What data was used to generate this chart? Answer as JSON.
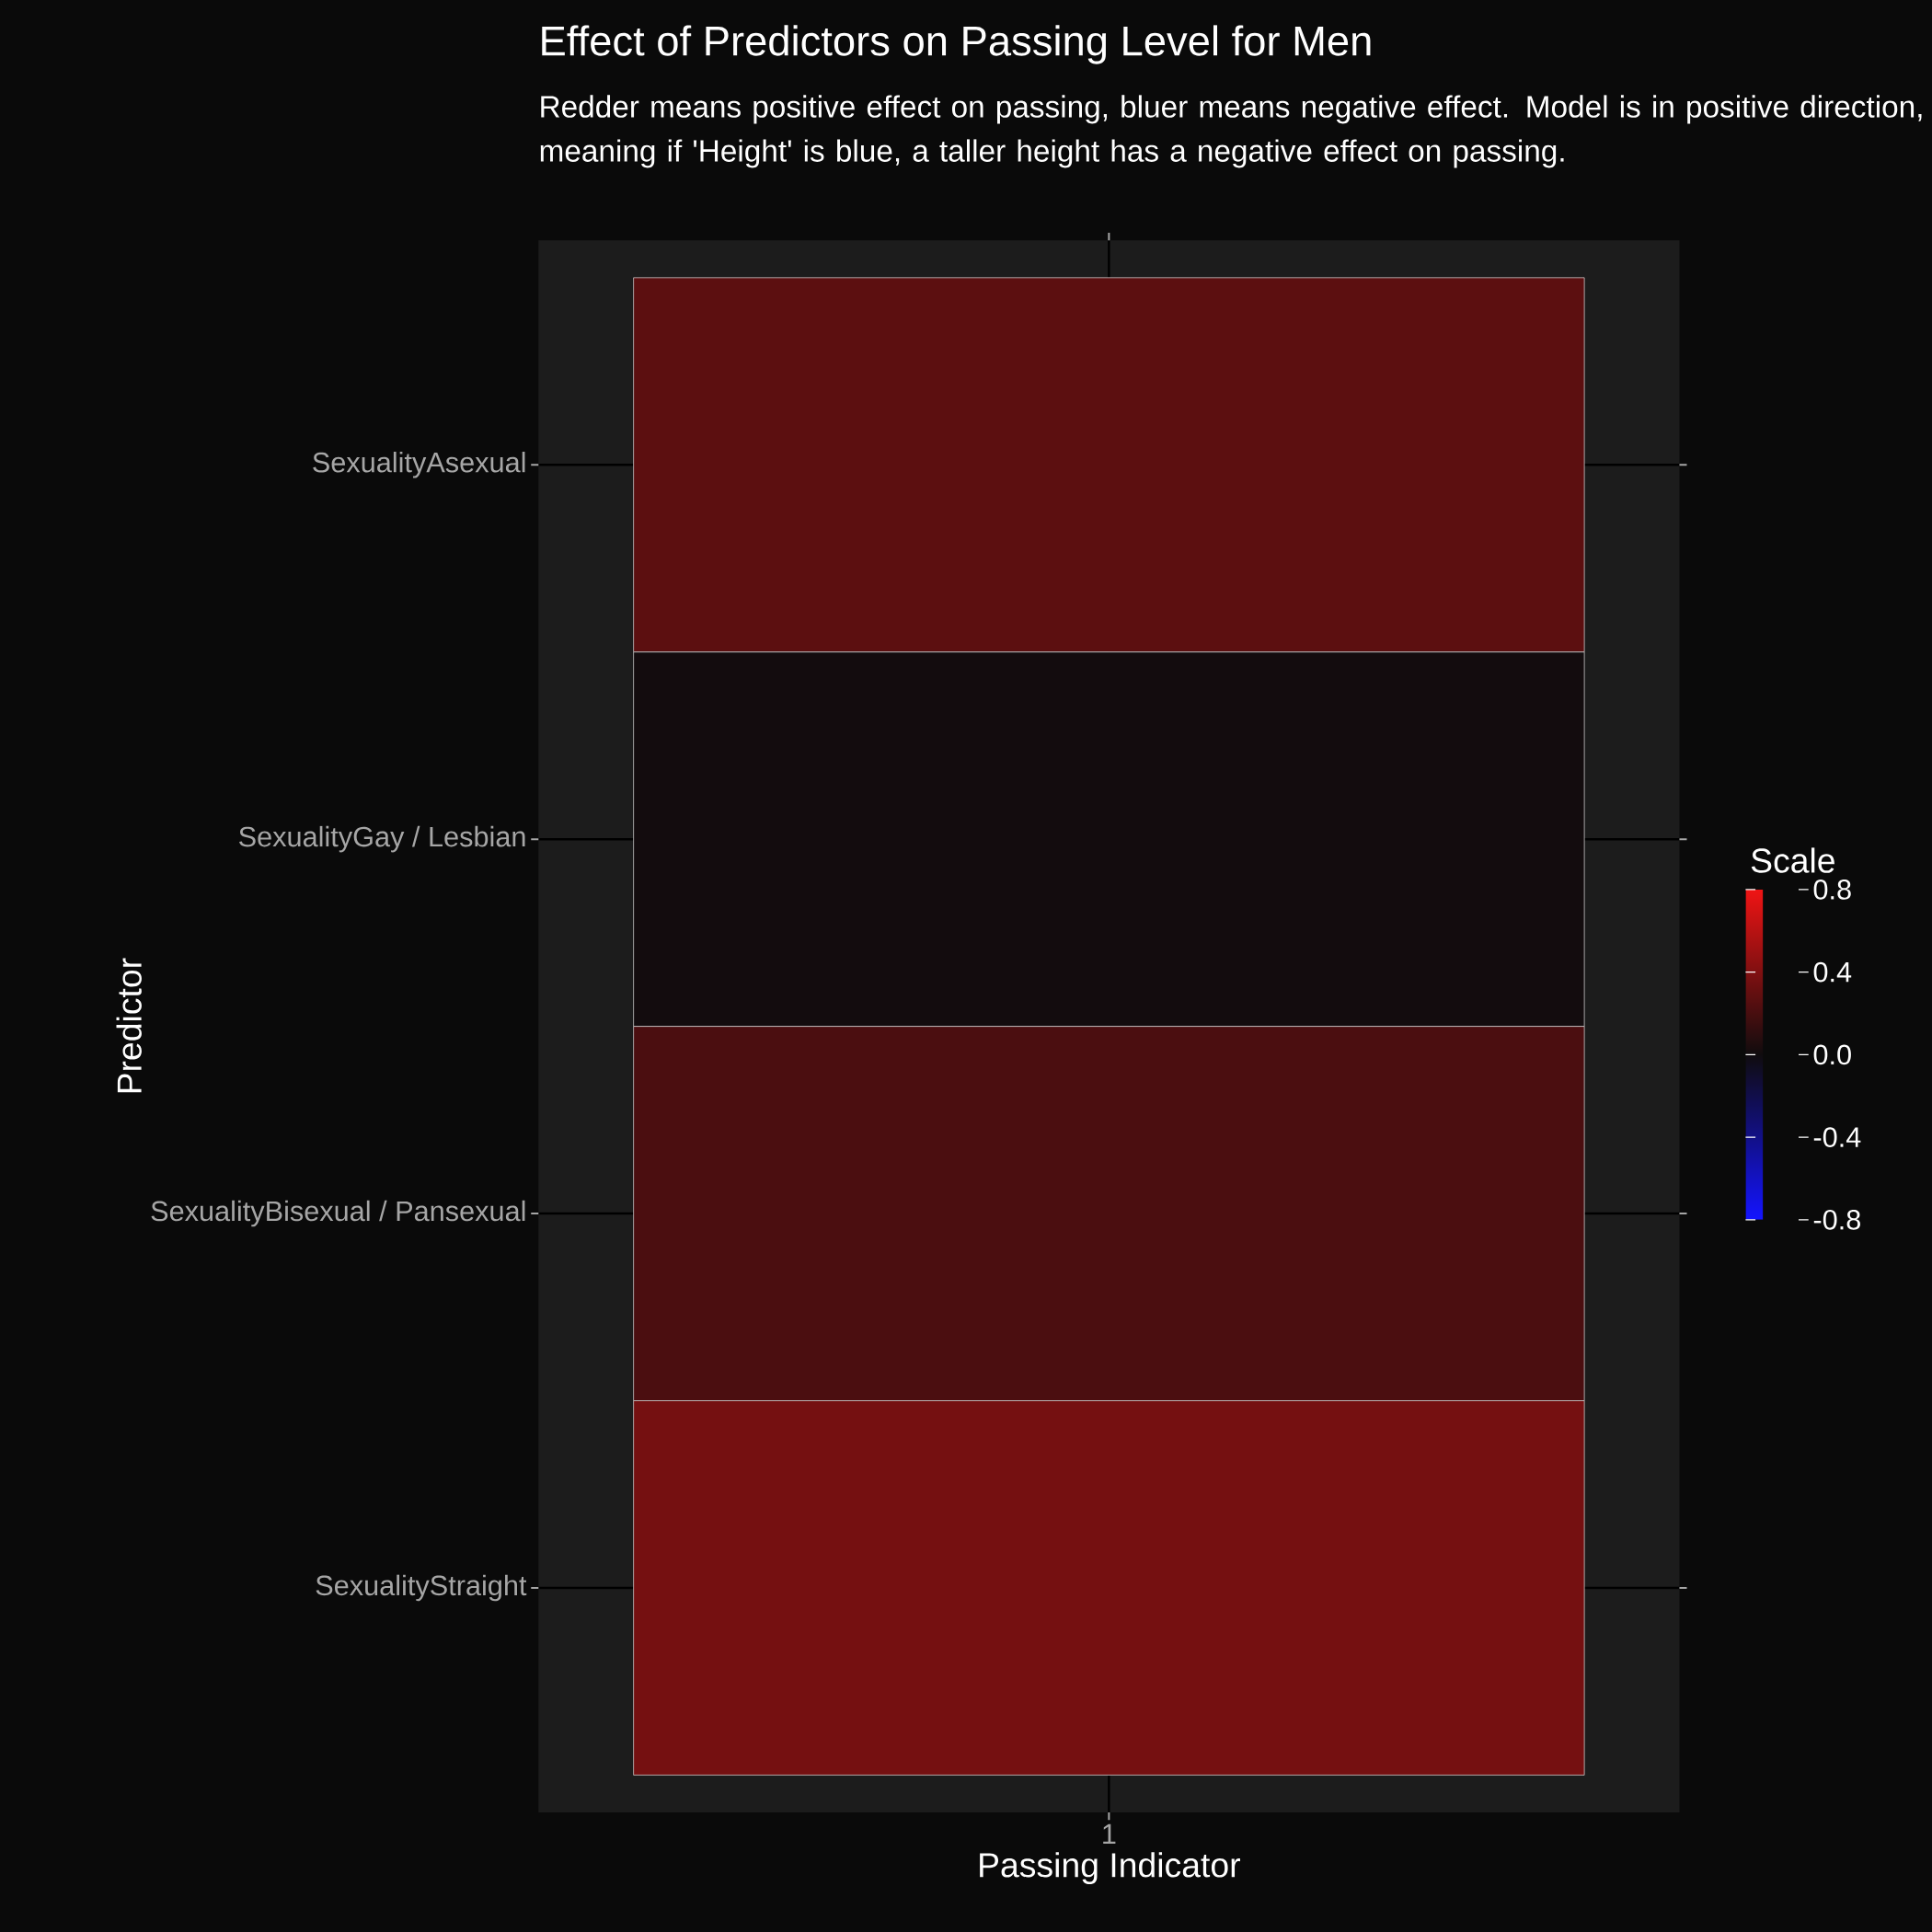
{
  "chart_data": {
    "type": "heatmap",
    "title": "Effect of Predictors on Passing Level for Men",
    "subtitle": "Redder means positive effect on passing, bluer means negative effect. Model is in positive direction, meaning if 'Height' is blue, a taller height has a negative effect on passing.",
    "xlabel": "Passing Indicator",
    "ylabel": "Predictor",
    "clabel": "Scale",
    "categories": [
      "1"
    ],
    "y_categories": [
      "SexualityAsexual",
      "SexualityGay / Lesbian",
      "SexualityBisexual / Pansexual",
      "SexualityStraight"
    ],
    "cells": [
      [
        0.27
      ],
      [
        0.01
      ],
      [
        0.21
      ],
      [
        0.36
      ]
    ],
    "clim": [
      -0.8,
      0.8
    ],
    "cticks": [
      -0.8,
      -0.4,
      {
        "value": 0,
        "label": "0.0"
      },
      0.4,
      0.8
    ],
    "grid": true
  }
}
